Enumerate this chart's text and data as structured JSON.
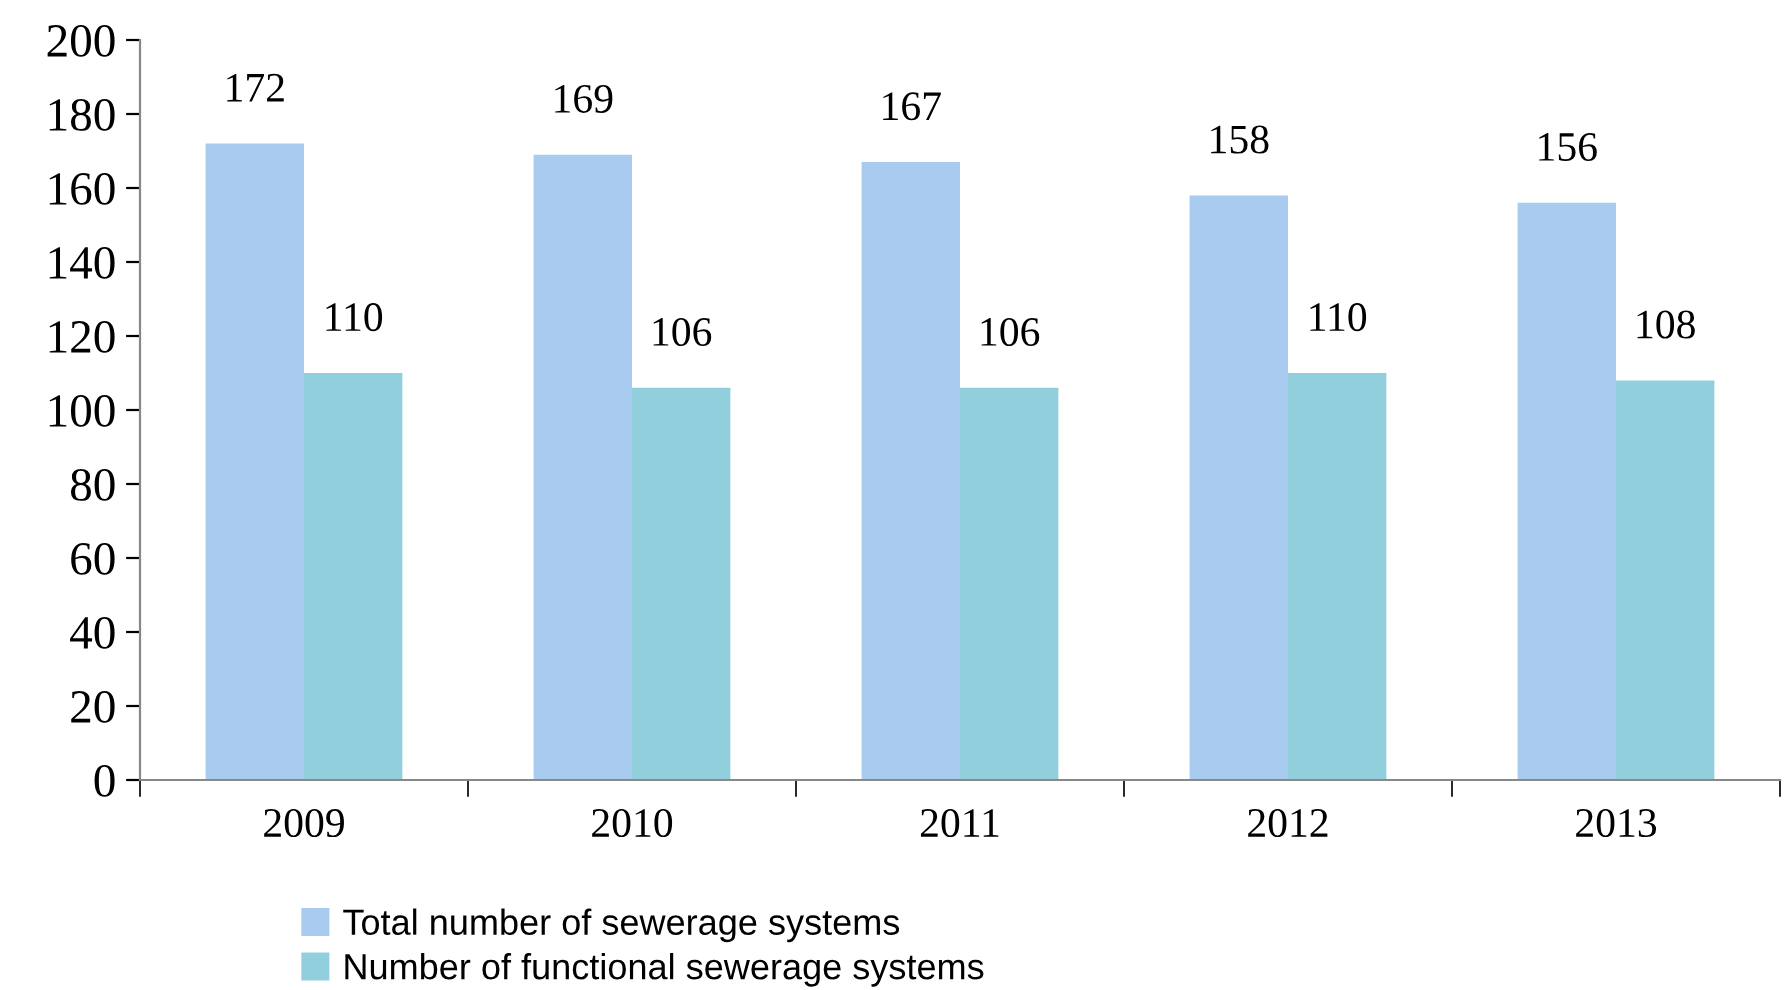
{
  "chart_data": {
    "type": "bar",
    "categories": [
      "2009",
      "2010",
      "2011",
      "2012",
      "2013"
    ],
    "series": [
      {
        "name": "Total number of sewerage systems",
        "color": "#a9cbef",
        "values": [
          172,
          169,
          167,
          158,
          156
        ]
      },
      {
        "name": "Number of functional sewerage systems",
        "color": "#92cfdd",
        "values": [
          110,
          106,
          106,
          110,
          108
        ]
      }
    ],
    "ylim": [
      0,
      200
    ],
    "yticks": [
      0,
      20,
      40,
      60,
      80,
      100,
      120,
      140,
      160,
      180,
      200
    ],
    "data_labels": true,
    "grid": false,
    "legend": "bottom"
  }
}
